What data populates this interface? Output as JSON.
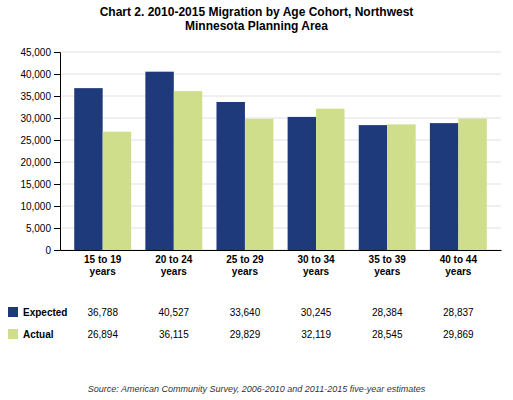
{
  "chart_data": {
    "type": "bar",
    "title": "Chart 2. 2010-2015 Migration by Age Cohort, Northwest\nMinnesota Planning Area",
    "categories": [
      "15 to 19\nyears",
      "20 to 24\nyears",
      "25 to 29\nyears",
      "30 to 34\nyears",
      "35 to 39\nyears",
      "40 to 44\nyears"
    ],
    "series": [
      {
        "name": "Expected",
        "color": "#1F3A7A",
        "values": [
          36788,
          40527,
          33640,
          30245,
          28384,
          28837
        ],
        "value_labels": [
          "36,788",
          "40,527",
          "33,640",
          "30,245",
          "28,384",
          "28,837"
        ]
      },
      {
        "name": "Actual",
        "color": "#CEDE8A",
        "values": [
          26894,
          36115,
          29829,
          32119,
          28545,
          29869
        ],
        "value_labels": [
          "26,894",
          "36,115",
          "29,829",
          "32,119",
          "28,545",
          "29,869"
        ]
      }
    ],
    "ylim": [
      0,
      45000
    ],
    "yticks": [
      0,
      {
        "value": 5000,
        "label": "5,000"
      },
      {
        "value": 10000,
        "label": "10,000"
      },
      {
        "value": 15000,
        "label": "15,000"
      },
      {
        "value": 20000,
        "label": "20,000"
      },
      {
        "value": 25000,
        "label": "25,000"
      },
      {
        "value": 30000,
        "label": "30,000"
      },
      {
        "value": 35000,
        "label": "35,000"
      },
      {
        "value": 40000,
        "label": "40,000"
      },
      {
        "value": 45000,
        "label": "45,000"
      }
    ],
    "grid": true,
    "legend": "bottom",
    "annotations": [
      {
        "text": "Source: American Community Survey, 2006-2010 and 2011-2015 five-year estimates"
      }
    ]
  }
}
